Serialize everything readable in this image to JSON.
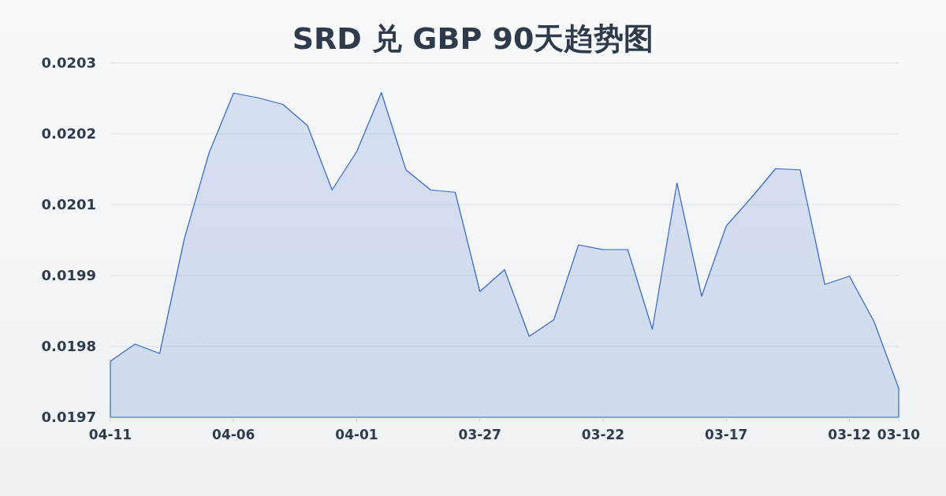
{
  "chart_data": {
    "type": "area",
    "title": "SRD 兑 GBP 90天趋势图",
    "categories": [
      "04-11",
      null,
      null,
      null,
      null,
      "04-06",
      null,
      null,
      null,
      null,
      "04-01",
      null,
      null,
      null,
      null,
      "03-27",
      null,
      null,
      null,
      null,
      "03-22",
      null,
      null,
      null,
      null,
      "03-17",
      null,
      null,
      null,
      null,
      "03-12",
      null,
      "03-10"
    ],
    "series": [
      {
        "color": "#3366cc",
        "values": [
          0.019795,
          0.019824,
          0.019808,
          0.020002,
          0.020147,
          0.020249,
          0.020241,
          0.02023,
          0.020194,
          0.020085,
          0.02015,
          0.02025,
          0.020119,
          0.020085,
          0.020081,
          0.019913,
          0.01995,
          0.019837,
          0.019865,
          0.019992,
          0.019984,
          0.019984,
          0.019849,
          0.020097,
          0.019905,
          0.020024,
          0.020071,
          0.020121,
          0.020119,
          0.019925,
          0.019939,
          0.019862,
          0.019749
        ]
      }
    ],
    "ylim": [
      0.0197,
      0.0203
    ],
    "yticks": [
      0.0197,
      {
        "value": 0.01982,
        "label": "0.0198"
      },
      {
        "value": 0.01994,
        "label": "0.0199"
      },
      {
        "value": 0.02006,
        "label": "0.0201"
      },
      {
        "value": 0.02018,
        "label": "0.0202"
      },
      0.0203
    ],
    "grid": "y"
  }
}
